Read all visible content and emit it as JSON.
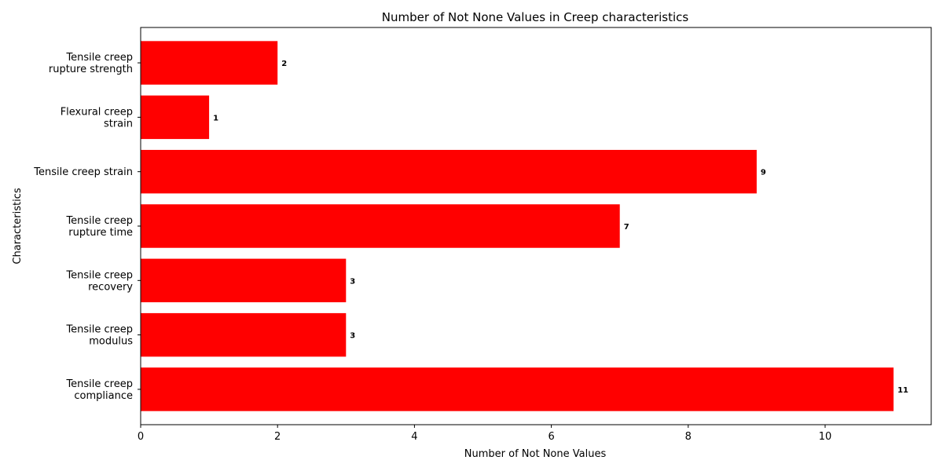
{
  "chart_data": {
    "type": "bar",
    "orientation": "horizontal",
    "title": "Number of Not None Values in Creep characteristics",
    "xlabel": "Number of Not None Values",
    "ylabel": "Characteristics",
    "categories": [
      [
        "Tensile creep",
        "compliance"
      ],
      [
        "Tensile creep",
        "modulus"
      ],
      [
        "Tensile creep",
        "recovery"
      ],
      [
        "Tensile creep",
        "rupture time"
      ],
      [
        "Tensile creep strain"
      ],
      [
        "Flexural creep",
        "strain"
      ],
      [
        "Tensile creep",
        "rupture strength"
      ]
    ],
    "values": [
      11,
      3,
      3,
      7,
      9,
      1,
      2
    ],
    "xlim": [
      0,
      11.55
    ],
    "xticks": [
      0,
      2,
      4,
      6,
      8,
      10
    ],
    "bar_color": "#ff0000",
    "grid": false,
    "legend": "none"
  }
}
